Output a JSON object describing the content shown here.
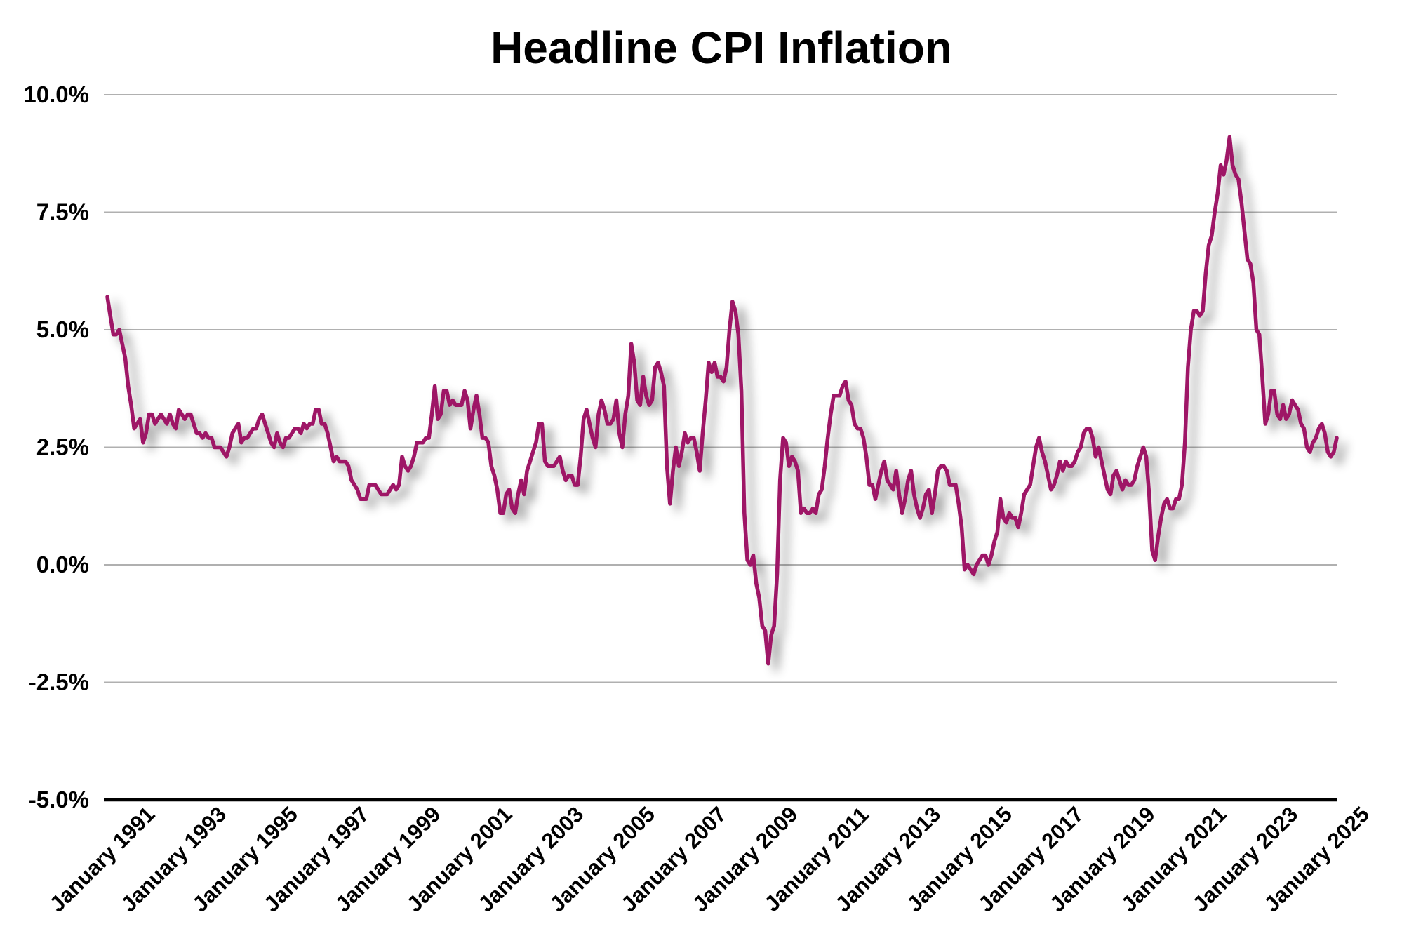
{
  "chart_data": {
    "type": "line",
    "title": "Headline CPI Inflation",
    "frequency": "monthly",
    "start_month": "January 1991",
    "end_month": "June 2025",
    "grid": true,
    "legend": false,
    "line_color": "#9E1566",
    "gridline_color": "#b0b0b0",
    "axis_color": "#000000",
    "x_axis": {
      "tick_interval_months": 24,
      "tick_labels": [
        "January 1991",
        "January 1993",
        "January 1995",
        "January 1997",
        "January 1999",
        "January 2001",
        "January 2003",
        "January 2005",
        "January 2007",
        "January 2009",
        "January 2011",
        "January 2013",
        "January 2015",
        "January 2017",
        "January 2019",
        "January 2021",
        "January 2023",
        "January 2025"
      ]
    },
    "y_axis": {
      "tick_labels": [
        "10.0%",
        "7.5%",
        "5.0%",
        "2.5%",
        "0.0%",
        "-2.5%",
        "-5.0%"
      ],
      "tick_values": [
        10,
        7.5,
        5,
        2.5,
        0,
        -2.5,
        -5
      ],
      "ylim": [
        -5,
        10
      ]
    },
    "values_pct": [
      5.7,
      5.3,
      4.9,
      4.9,
      5.0,
      4.7,
      4.4,
      3.8,
      3.4,
      2.9,
      3.0,
      3.1,
      2.6,
      2.8,
      3.2,
      3.2,
      3.0,
      3.1,
      3.2,
      3.1,
      3.0,
      3.2,
      3.0,
      2.9,
      3.3,
      3.2,
      3.1,
      3.2,
      3.2,
      3.0,
      2.8,
      2.8,
      2.7,
      2.8,
      2.7,
      2.7,
      2.5,
      2.5,
      2.5,
      2.4,
      2.3,
      2.5,
      2.8,
      2.9,
      3.0,
      2.6,
      2.7,
      2.7,
      2.8,
      2.9,
      2.9,
      3.1,
      3.2,
      3.0,
      2.8,
      2.6,
      2.5,
      2.8,
      2.6,
      2.5,
      2.7,
      2.7,
      2.8,
      2.9,
      2.9,
      2.8,
      3.0,
      2.9,
      3.0,
      3.0,
      3.3,
      3.3,
      3.0,
      3.0,
      2.8,
      2.5,
      2.2,
      2.3,
      2.2,
      2.2,
      2.2,
      2.1,
      1.8,
      1.7,
      1.6,
      1.4,
      1.4,
      1.4,
      1.7,
      1.7,
      1.7,
      1.6,
      1.5,
      1.5,
      1.5,
      1.6,
      1.7,
      1.6,
      1.7,
      2.3,
      2.1,
      2.0,
      2.1,
      2.3,
      2.6,
      2.6,
      2.6,
      2.7,
      2.7,
      3.2,
      3.8,
      3.1,
      3.2,
      3.7,
      3.7,
      3.4,
      3.5,
      3.4,
      3.4,
      3.4,
      3.7,
      3.5,
      2.9,
      3.3,
      3.6,
      3.2,
      2.7,
      2.7,
      2.6,
      2.1,
      1.9,
      1.6,
      1.1,
      1.1,
      1.5,
      1.6,
      1.2,
      1.1,
      1.5,
      1.8,
      1.5,
      2.0,
      2.2,
      2.4,
      2.6,
      3.0,
      3.0,
      2.2,
      2.1,
      2.1,
      2.1,
      2.2,
      2.3,
      2.0,
      1.8,
      1.9,
      1.9,
      1.7,
      1.7,
      2.3,
      3.1,
      3.3,
      3.0,
      2.7,
      2.5,
      3.2,
      3.5,
      3.3,
      3.0,
      3.0,
      3.1,
      3.5,
      2.8,
      2.5,
      3.2,
      3.6,
      4.7,
      4.3,
      3.5,
      3.4,
      4.0,
      3.6,
      3.4,
      3.5,
      4.2,
      4.3,
      4.1,
      3.8,
      2.1,
      1.3,
      2.0,
      2.5,
      2.1,
      2.4,
      2.8,
      2.6,
      2.7,
      2.7,
      2.4,
      2.0,
      2.8,
      3.5,
      4.3,
      4.1,
      4.3,
      4.0,
      4.0,
      3.9,
      4.2,
      5.0,
      5.6,
      5.4,
      4.9,
      3.7,
      1.1,
      0.1,
      0.0,
      0.2,
      -0.4,
      -0.7,
      -1.3,
      -1.4,
      -2.1,
      -1.5,
      -1.3,
      -0.2,
      1.8,
      2.7,
      2.6,
      2.1,
      2.3,
      2.2,
      2.0,
      1.1,
      1.2,
      1.1,
      1.1,
      1.2,
      1.1,
      1.5,
      1.6,
      2.1,
      2.7,
      3.2,
      3.6,
      3.6,
      3.6,
      3.8,
      3.9,
      3.5,
      3.4,
      3.0,
      2.9,
      2.9,
      2.7,
      2.3,
      1.7,
      1.7,
      1.4,
      1.7,
      2.0,
      2.2,
      1.8,
      1.7,
      1.6,
      2.0,
      1.5,
      1.1,
      1.4,
      1.8,
      2.0,
      1.5,
      1.2,
      1.0,
      1.2,
      1.5,
      1.6,
      1.1,
      1.5,
      2.0,
      2.1,
      2.1,
      2.0,
      1.7,
      1.7,
      1.7,
      1.3,
      0.8,
      -0.1,
      0.0,
      -0.1,
      -0.2,
      0.0,
      0.1,
      0.2,
      0.2,
      0.0,
      0.2,
      0.5,
      0.7,
      1.4,
      1.0,
      0.9,
      1.1,
      1.0,
      1.0,
      0.8,
      1.1,
      1.5,
      1.6,
      1.7,
      2.1,
      2.5,
      2.7,
      2.4,
      2.2,
      1.9,
      1.6,
      1.7,
      1.9,
      2.2,
      2.0,
      2.2,
      2.1,
      2.1,
      2.2,
      2.4,
      2.5,
      2.8,
      2.9,
      2.9,
      2.7,
      2.3,
      2.5,
      2.2,
      1.9,
      1.6,
      1.5,
      1.9,
      2.0,
      1.8,
      1.6,
      1.8,
      1.7,
      1.7,
      1.8,
      2.1,
      2.3,
      2.5,
      2.3,
      1.5,
      0.3,
      0.1,
      0.6,
      1.0,
      1.3,
      1.4,
      1.2,
      1.2,
      1.4,
      1.4,
      1.7,
      2.6,
      4.2,
      5.0,
      5.4,
      5.4,
      5.3,
      5.4,
      6.2,
      6.8,
      7.0,
      7.5,
      7.9,
      8.5,
      8.3,
      8.6,
      9.1,
      8.5,
      8.3,
      8.2,
      7.7,
      7.1,
      6.5,
      6.4,
      6.0,
      5.0,
      4.9,
      4.0,
      3.0,
      3.2,
      3.7,
      3.7,
      3.2,
      3.1,
      3.4,
      3.1,
      3.2,
      3.5,
      3.4,
      3.3,
      3.0,
      2.9,
      2.5,
      2.4,
      2.6,
      2.7,
      2.9,
      3.0,
      2.8,
      2.4,
      2.3,
      2.4,
      2.7
    ]
  }
}
